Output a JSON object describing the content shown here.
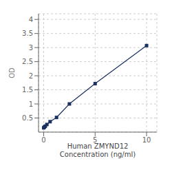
{
  "chart_data": {
    "type": "line",
    "x": [
      0.0,
      0.078125,
      0.15625,
      0.3125,
      0.625,
      1.25,
      2.5,
      5.0,
      10.0
    ],
    "values": [
      0.152,
      0.182,
      0.21,
      0.27,
      0.37,
      0.52,
      1.0,
      1.72,
      3.07
    ],
    "xlabel": "Human ZMYND12\nConcentration (ng/ml)",
    "ylabel": "OD",
    "xlim": [
      -0.5,
      11.0
    ],
    "ylim": [
      0,
      4.2
    ],
    "xticks": [
      0,
      5,
      10
    ],
    "yticks": [
      0.5,
      1.0,
      1.5,
      2.0,
      2.5,
      3.0,
      3.5,
      4.0
    ],
    "grid": true,
    "color": "#1a3060",
    "marker": "square"
  }
}
